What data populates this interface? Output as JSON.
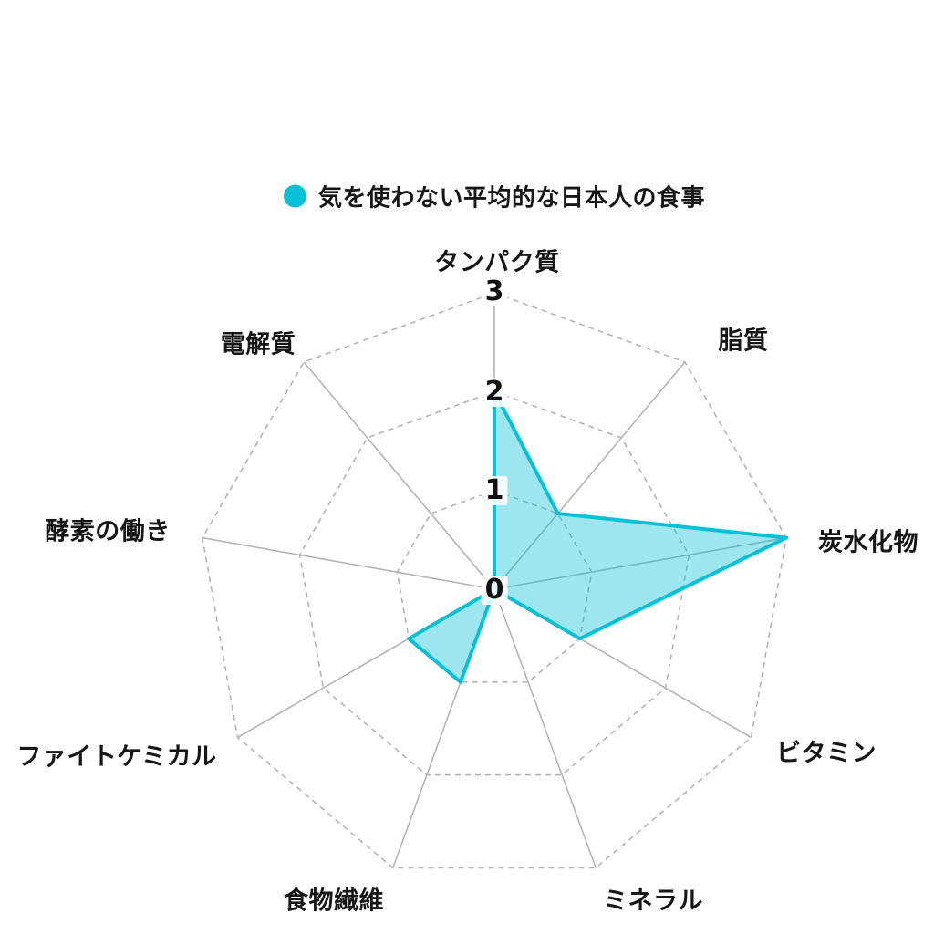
{
  "chart_data": {
    "type": "radar",
    "legend": {
      "label": "気を使わない平均的な日本人の食事",
      "position": "top",
      "marker": "circle-icon"
    },
    "categories": [
      "タンパク質",
      "脂質",
      "炭水化物",
      "ビタミン",
      "ミネラル",
      "食物繊維",
      "ファイトケミカル",
      "酵素の働き",
      "電解質"
    ],
    "series": [
      {
        "name": "気を使わない平均的な日本人の食事",
        "values": [
          2,
          1,
          3,
          1,
          0,
          1,
          1,
          0,
          0
        ]
      }
    ],
    "scale": {
      "min": 0,
      "max": 3,
      "tick_labels": [
        "0",
        "1",
        "2",
        "3"
      ]
    },
    "layout_hints": {
      "start_axis": "top",
      "direction": "clockwise",
      "rings": "dashed",
      "spokes": "solid"
    },
    "colors": {
      "series_stroke": "#0ac0d6",
      "series_fill": "rgba(10,192,214,0.40)",
      "grid": "#b4b4b4",
      "text": "#161616",
      "background": "#ffffff"
    }
  }
}
